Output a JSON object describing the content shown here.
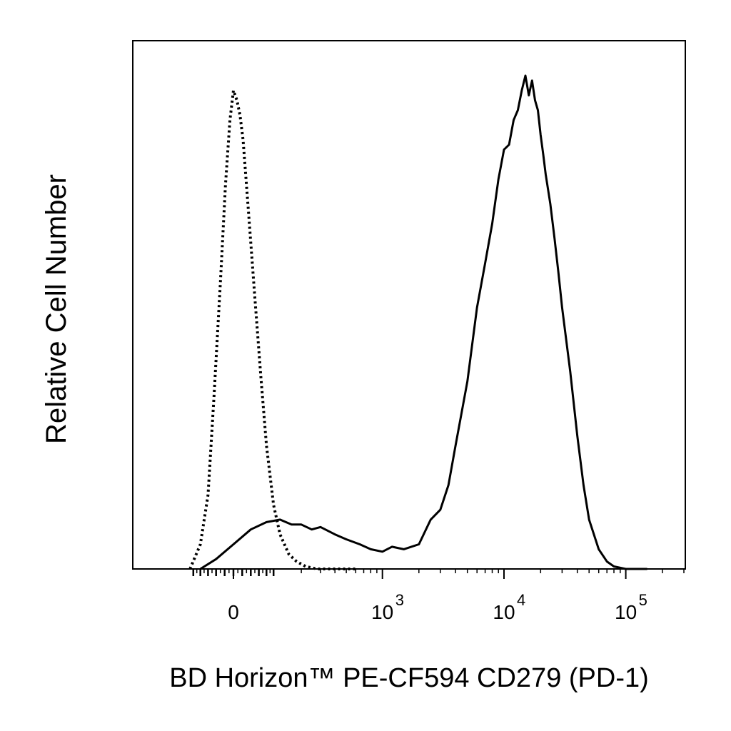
{
  "chart_data": {
    "type": "line",
    "title": "",
    "xlabel": "BD Horizon™ PE-CF594 CD279 (PD-1)",
    "ylabel": "Relative Cell Number",
    "x_scale": "biexponential",
    "x_range": [
      -150,
      200000
    ],
    "y_range": [
      0,
      1.0
    ],
    "grid": false,
    "x_ticks": [
      {
        "value": 0,
        "base": "0",
        "exp": ""
      },
      {
        "value": 1000,
        "base": "10",
        "exp": "3"
      },
      {
        "value": 10000,
        "base": "10",
        "exp": "4"
      },
      {
        "value": 100000,
        "base": "10",
        "exp": "5"
      }
    ],
    "series": [
      {
        "style": "dotted",
        "color": "#000000",
        "x": [
          -110,
          -80,
          -60,
          -45,
          -30,
          -18,
          -8,
          0,
          8,
          15,
          22,
          35,
          50,
          65,
          80,
          100,
          120,
          150,
          180,
          220,
          280,
          350,
          450,
          600
        ],
        "y": [
          0.0,
          0.05,
          0.15,
          0.35,
          0.58,
          0.78,
          0.91,
          0.97,
          0.95,
          0.92,
          0.87,
          0.72,
          0.55,
          0.39,
          0.25,
          0.13,
          0.07,
          0.03,
          0.015,
          0.005,
          0.0,
          0.0,
          0.0,
          0.0
        ]
      },
      {
        "style": "solid",
        "color": "#000000",
        "x": [
          -80,
          -40,
          0,
          40,
          80,
          120,
          160,
          200,
          250,
          300,
          400,
          500,
          650,
          800,
          1000,
          1200,
          1500,
          2000,
          2500,
          3000,
          3500,
          4000,
          5000,
          6000,
          7000,
          8000,
          9000,
          10000,
          11000,
          12000,
          13000,
          14000,
          15000,
          16000,
          17000,
          18000,
          19000,
          20000,
          21000,
          22000,
          24000,
          26000,
          28000,
          30000,
          35000,
          40000,
          45000,
          50000,
          60000,
          70000,
          80000,
          100000,
          150000
        ],
        "y": [
          0.0,
          0.02,
          0.05,
          0.08,
          0.095,
          0.1,
          0.09,
          0.09,
          0.08,
          0.085,
          0.07,
          0.06,
          0.05,
          0.04,
          0.035,
          0.045,
          0.04,
          0.05,
          0.1,
          0.12,
          0.17,
          0.25,
          0.38,
          0.53,
          0.62,
          0.7,
          0.79,
          0.85,
          0.86,
          0.91,
          0.93,
          0.97,
          1.0,
          0.96,
          0.99,
          0.95,
          0.93,
          0.88,
          0.84,
          0.8,
          0.74,
          0.67,
          0.6,
          0.53,
          0.4,
          0.27,
          0.17,
          0.1,
          0.04,
          0.015,
          0.005,
          0.0,
          0.0
        ]
      }
    ]
  }
}
